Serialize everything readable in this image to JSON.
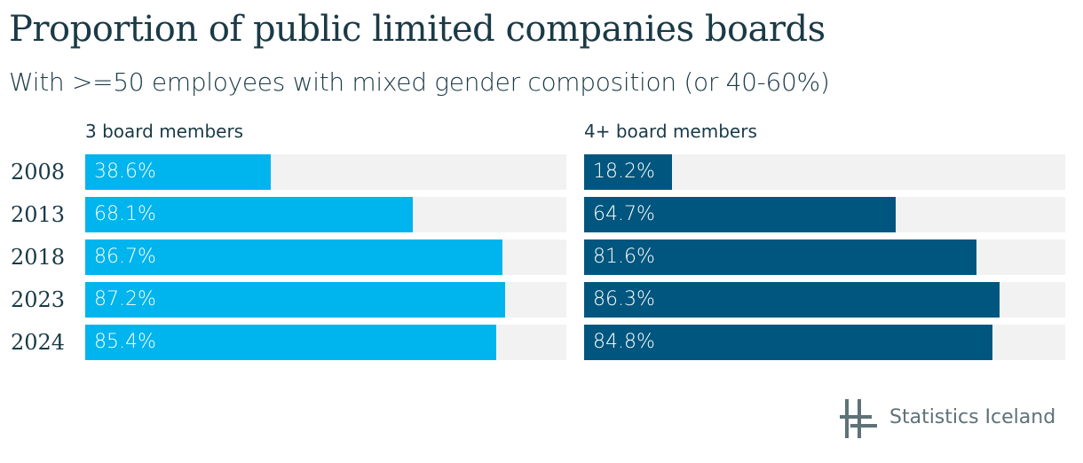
{
  "title": "Proportion of public limited companies boards",
  "subtitle": "With >=50 employees with mixed gender composition (or 40-60%)",
  "logo": {
    "text": "Statistics Iceland"
  },
  "colors": {
    "series1": "#00b4ed",
    "series2": "#00567e",
    "track": "#f2f2f2",
    "text": "#1a3a46"
  },
  "chart_data": {
    "type": "bar",
    "orientation": "horizontal",
    "categories": [
      "2008",
      "2013",
      "2018",
      "2023",
      "2024"
    ],
    "xlim": [
      0,
      100
    ],
    "unit": "%",
    "grid": false,
    "panels": [
      {
        "title": "3 board members",
        "values": [
          38.6,
          68.1,
          86.7,
          87.2,
          85.4
        ],
        "labels": [
          "38.6%",
          "68.1%",
          "86.7%",
          "87.2%",
          "85.4%"
        ]
      },
      {
        "title": "4+ board members",
        "values": [
          18.2,
          64.7,
          81.6,
          86.3,
          84.8
        ],
        "labels": [
          "18.2%",
          "64.7%",
          "81.6%",
          "86.3%",
          "84.8%"
        ]
      }
    ]
  }
}
